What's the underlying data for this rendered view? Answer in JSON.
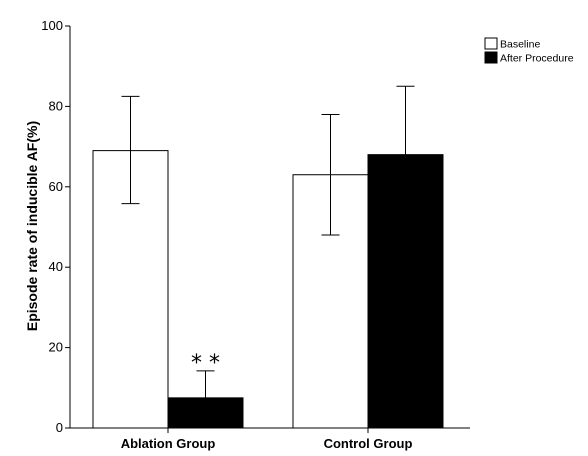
{
  "chart_data": {
    "type": "bar",
    "title": "",
    "xlabel": "",
    "ylabel": "Episode rate of inducible AF(%)",
    "ylim": [
      0,
      100
    ],
    "yticks": [
      0,
      20,
      40,
      60,
      80,
      100
    ],
    "categories": [
      "Ablation Group",
      "Control Group"
    ],
    "series": [
      {
        "name": "Baseline",
        "color": "#ffffff",
        "values": [
          69,
          63
        ],
        "error_low": [
          55.8,
          48
        ],
        "error_high": [
          82.5,
          78
        ]
      },
      {
        "name": "After Procedure",
        "color": "#000000",
        "values": [
          7.5,
          68
        ],
        "error_low": [
          7.5,
          68
        ],
        "error_high": [
          14.2,
          85
        ]
      }
    ],
    "annotations": [
      {
        "category": "Ablation Group",
        "series": "After Procedure",
        "text": "* *"
      }
    ],
    "legend": "top-right",
    "grid": false
  }
}
